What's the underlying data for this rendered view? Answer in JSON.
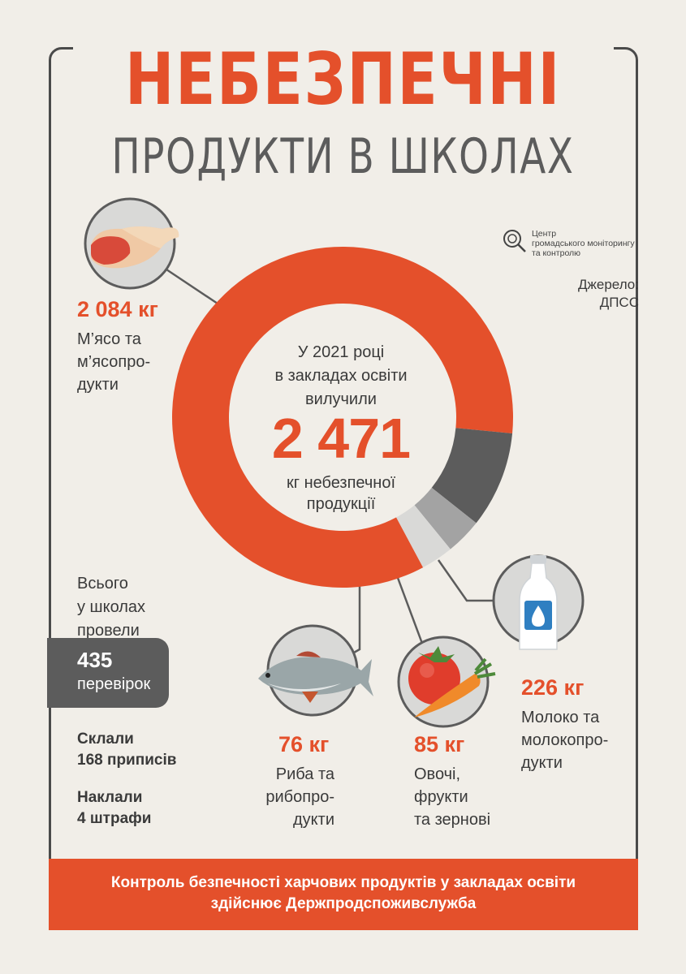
{
  "title": "НЕБЕЗПЕЧНІ",
  "subtitle": "ПРОДУКТИ В ШКОЛАХ",
  "logo": {
    "line1": "Центр",
    "line2": "громадського моніторингу",
    "line3": "та контролю"
  },
  "source": {
    "label": "Джерело:",
    "value": "ДПСС"
  },
  "center": {
    "line1": "У 2021 році",
    "line2": "в закладах освіти",
    "line3": "вилучили",
    "total": "2 471",
    "line4": "кг небезпечної",
    "line5": "продукції"
  },
  "categories": {
    "meat": {
      "value": "2 084 кг",
      "l1": "М’ясо та",
      "l2": "м’ясопро-",
      "l3": "дукти"
    },
    "fish": {
      "value": "76 кг",
      "l1": "Риба та",
      "l2": "рибопро-",
      "l3": "дукти"
    },
    "veg": {
      "value": "85 кг",
      "l1": "Овочі,",
      "l2": "фрукти",
      "l3": "та зернові"
    },
    "milk": {
      "value": "226 кг",
      "l1": "Молоко та",
      "l2": "молокопро-",
      "l3": "дукти"
    }
  },
  "checks": {
    "l1": "Всього",
    "l2": "у школах",
    "l3": "провели",
    "number": "435",
    "word": "перевірок"
  },
  "stats": {
    "s1a": "Склали",
    "s1b": "168 приписів",
    "s2a": "Наклали",
    "s2b": "4 штрафи"
  },
  "footer": {
    "line1": "Контроль безпечності харчових продуктів у закладах освіти",
    "line2": "здійснює Держпродспоживслужба"
  },
  "colors": {
    "accent": "#e4502b",
    "dark_gray": "#5c5c5c",
    "mid_gray": "#a3a3a3",
    "light_gray": "#d9d9d7",
    "background": "#f1eee8"
  },
  "chart_data": {
    "type": "pie",
    "title": "НЕБЕЗПЕЧНІ ПРОДУКТИ В ШКОЛАХ",
    "unit": "кг",
    "total": 2471,
    "slices": [
      {
        "label": "М’ясо та м’ясопродукти",
        "value": 2084,
        "color": "#e4502b"
      },
      {
        "label": "Молоко та молокопродукти",
        "value": 226,
        "color": "#5c5c5c"
      },
      {
        "label": "Овочі, фрукти та зернові",
        "value": 85,
        "color": "#a3a3a3"
      },
      {
        "label": "Риба та рибопродукти",
        "value": 76,
        "color": "#d9d9d7"
      }
    ]
  }
}
